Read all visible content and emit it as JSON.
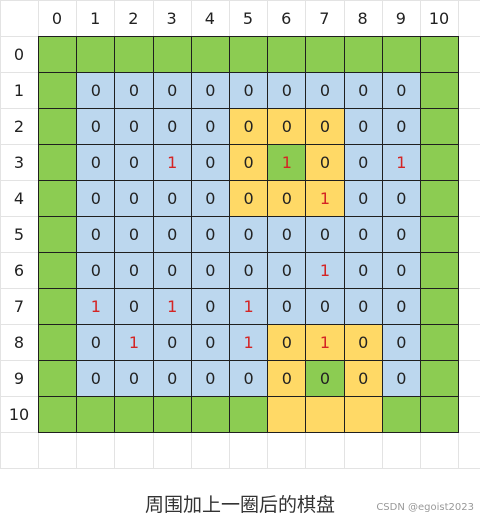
{
  "col_headers": [
    "0",
    "1",
    "2",
    "3",
    "4",
    "5",
    "6",
    "7",
    "8",
    "9",
    "10"
  ],
  "row_headers": [
    "0",
    "1",
    "2",
    "3",
    "4",
    "5",
    "6",
    "7",
    "8",
    "9",
    "10"
  ],
  "colors": {
    "border": "#8ccc52",
    "blue": "#bcd7ee",
    "yellow": "#ffd966",
    "green_inner": "#8ccc52",
    "zero_text": "#222222",
    "one_text": "#d42424"
  },
  "grid": [
    [
      "B",
      "B",
      "B",
      "B",
      "B",
      "B",
      "B",
      "B",
      "B",
      "B",
      "B"
    ],
    [
      "B",
      "0",
      "0",
      "0",
      "0",
      "0",
      "0",
      "0",
      "0",
      "0",
      "B"
    ],
    [
      "B",
      "0",
      "0",
      "0",
      "0",
      "0",
      "0",
      "0",
      "0",
      "0",
      "B"
    ],
    [
      "B",
      "0",
      "0",
      "1",
      "0",
      "0",
      "1",
      "0",
      "0",
      "1",
      "B"
    ],
    [
      "B",
      "0",
      "0",
      "0",
      "0",
      "0",
      "0",
      "1",
      "0",
      "0",
      "B"
    ],
    [
      "B",
      "0",
      "0",
      "0",
      "0",
      "0",
      "0",
      "0",
      "0",
      "0",
      "B"
    ],
    [
      "B",
      "0",
      "0",
      "0",
      "0",
      "0",
      "0",
      "1",
      "0",
      "0",
      "B"
    ],
    [
      "B",
      "1",
      "0",
      "1",
      "0",
      "1",
      "0",
      "0",
      "0",
      "0",
      "B"
    ],
    [
      "B",
      "0",
      "1",
      "0",
      "0",
      "1",
      "0",
      "1",
      "0",
      "0",
      "B"
    ],
    [
      "B",
      "0",
      "0",
      "0",
      "0",
      "0",
      "0",
      "0",
      "0",
      "0",
      "B"
    ],
    [
      "B",
      "B",
      "B",
      "B",
      "B",
      "B",
      "Y",
      "Y",
      "Y",
      "B",
      "B"
    ]
  ],
  "cell_colors": [
    [
      "g",
      "g",
      "g",
      "g",
      "g",
      "g",
      "g",
      "g",
      "g",
      "g",
      "g"
    ],
    [
      "g",
      "b",
      "b",
      "b",
      "b",
      "b",
      "b",
      "b",
      "b",
      "b",
      "g"
    ],
    [
      "g",
      "b",
      "b",
      "b",
      "b",
      "y",
      "y",
      "y",
      "b",
      "b",
      "g"
    ],
    [
      "g",
      "b",
      "b",
      "b",
      "b",
      "y",
      "g",
      "y",
      "b",
      "b",
      "g"
    ],
    [
      "g",
      "b",
      "b",
      "b",
      "b",
      "y",
      "y",
      "y",
      "b",
      "b",
      "g"
    ],
    [
      "g",
      "b",
      "b",
      "b",
      "b",
      "b",
      "b",
      "b",
      "b",
      "b",
      "g"
    ],
    [
      "g",
      "b",
      "b",
      "b",
      "b",
      "b",
      "b",
      "b",
      "b",
      "b",
      "g"
    ],
    [
      "g",
      "b",
      "b",
      "b",
      "b",
      "b",
      "b",
      "b",
      "b",
      "b",
      "g"
    ],
    [
      "g",
      "b",
      "b",
      "b",
      "b",
      "b",
      "y",
      "y",
      "y",
      "b",
      "g"
    ],
    [
      "g",
      "b",
      "b",
      "b",
      "b",
      "b",
      "y",
      "g",
      "y",
      "b",
      "g"
    ],
    [
      "g",
      "g",
      "g",
      "g",
      "g",
      "g",
      "y",
      "y",
      "y",
      "g",
      "g"
    ]
  ],
  "caption": "周围加上一圈后的棋盘",
  "watermark": "CSDN @egoist2023"
}
